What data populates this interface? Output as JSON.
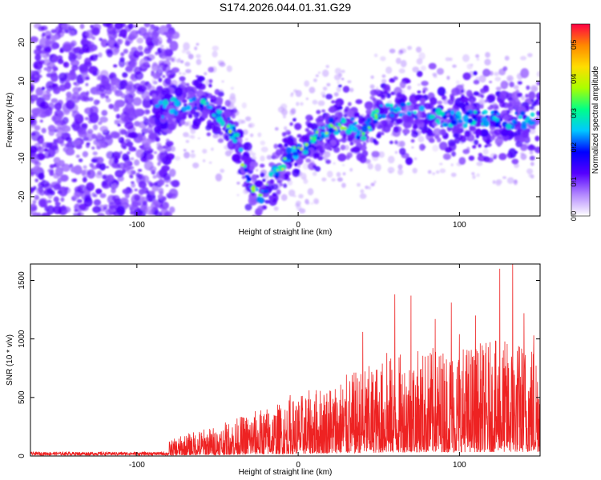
{
  "figure": {
    "title": "S174.2026.044.01.31.G29"
  },
  "chart_data": [
    {
      "type": "heatmap",
      "xlabel": "Height of straight line (km)",
      "ylabel": "Frequency (Hz)",
      "xlim": [
        -166,
        150
      ],
      "ylim": [
        -25,
        25
      ],
      "x_ticks": [
        -100,
        0,
        100
      ],
      "y_ticks": [
        -20,
        -10,
        0,
        10,
        20
      ],
      "colorbar": {
        "label": "Normalized spectral amplitude",
        "range": [
          0,
          0.56
        ],
        "ticks": [
          0.0,
          0.1,
          0.2,
          0.3,
          0.4,
          0.5
        ],
        "colormap": [
          "#ffffff",
          "#b388ff",
          "#5500ff",
          "#0000ff",
          "#00c8ff",
          "#00ff88",
          "#aaff00",
          "#ffdd00",
          "#ff8800",
          "#ff0044"
        ]
      },
      "ridge": {
        "x": [
          -90,
          -80,
          -70,
          -60,
          -50,
          -40,
          -35,
          -30,
          -25,
          -20,
          -15,
          -10,
          -5,
          0,
          10,
          20,
          30,
          35,
          40,
          45,
          50,
          60,
          70,
          80,
          100,
          120,
          140,
          150
        ],
        "y": [
          2,
          3,
          4,
          4,
          2,
          -3,
          -10,
          -16,
          -20,
          -18,
          -14,
          -12,
          -9,
          -8,
          -5,
          -2,
          -1,
          -2,
          -4,
          -1,
          2,
          3,
          2,
          1,
          0,
          0,
          0,
          1
        ]
      }
    },
    {
      "type": "line",
      "xlabel": "Height of straight line (km)",
      "ylabel": "SNR (10 * v/v)",
      "xlim": [
        -166,
        150
      ],
      "ylim": [
        0,
        1640
      ],
      "x_ticks": [
        -100,
        0,
        100
      ],
      "y_ticks": [
        0,
        500,
        1000,
        1500
      ],
      "color": "#ee2222",
      "series": [
        {
          "x": [
            -166,
            -140,
            -120,
            -100,
            -90,
            -80,
            -70,
            -60,
            -50,
            -40,
            -30,
            -20,
            -10,
            0,
            10,
            20,
            30,
            40,
            50,
            60,
            70,
            80,
            90,
            100,
            110,
            120,
            130,
            140,
            150
          ],
          "values": [
            20,
            20,
            20,
            20,
            22,
            90,
            130,
            160,
            180,
            220,
            260,
            290,
            320,
            360,
            400,
            440,
            480,
            520,
            560,
            600,
            620,
            640,
            650,
            660,
            670,
            680,
            690,
            690,
            700
          ],
          "peaks": [
            [
              -5,
              520
            ],
            [
              40,
              1060
            ],
            [
              55,
              880
            ],
            [
              60,
              1380
            ],
            [
              70,
              1370
            ],
            [
              85,
              1170
            ],
            [
              95,
              1310
            ],
            [
              100,
              1040
            ],
            [
              110,
              1200
            ],
            [
              125,
              1600
            ],
            [
              133,
              1640
            ],
            [
              140,
              1220
            ],
            [
              146,
              1030
            ]
          ]
        }
      ]
    }
  ]
}
